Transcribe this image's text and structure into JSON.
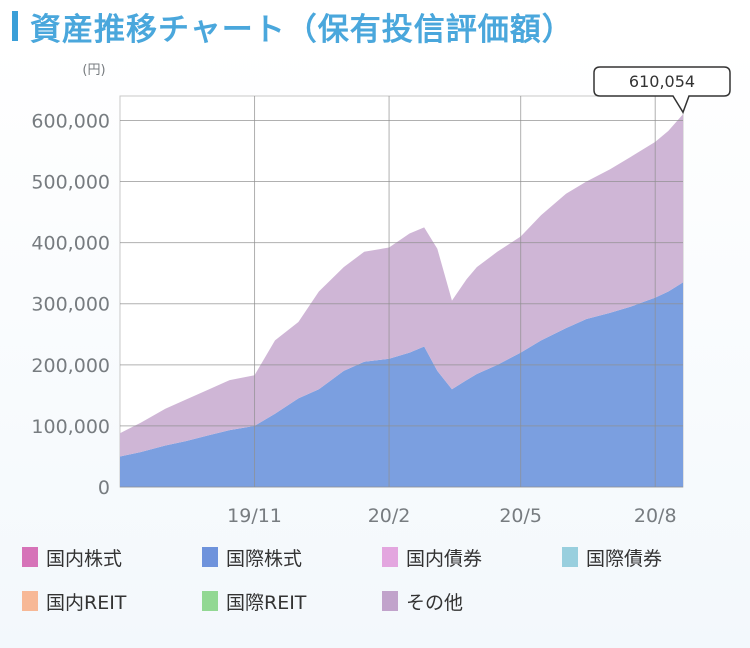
{
  "header": {
    "title": "資産推移チャート（保有投信評価額）"
  },
  "chart_data": {
    "type": "area",
    "stacked": true,
    "unit_label": "(円)",
    "ylim": [
      0,
      640000
    ],
    "yticks": [
      0,
      100000,
      200000,
      300000,
      400000,
      500000,
      600000
    ],
    "ytick_labels": [
      "0",
      "100,000",
      "200,000",
      "300,000",
      "400,000",
      "500,000",
      "600,000"
    ],
    "xlim": [
      "2019-08-01",
      "2020-08-20"
    ],
    "xticks": [
      "2019-11-01",
      "2020-02-01",
      "2020-05-01",
      "2020-08-01"
    ],
    "xtick_labels": [
      "19/11",
      "20/2",
      "20/5",
      "20/8"
    ],
    "grid": true,
    "callout": {
      "label": "610,054",
      "x": "2020-08-20",
      "value": 610054
    },
    "x": [
      "2019-08-01",
      "2019-08-15",
      "2019-09-01",
      "2019-09-15",
      "2019-10-01",
      "2019-10-15",
      "2019-11-01",
      "2019-11-15",
      "2019-12-01",
      "2019-12-15",
      "2020-01-01",
      "2020-01-15",
      "2020-02-01",
      "2020-02-15",
      "2020-02-25",
      "2020-03-05",
      "2020-03-15",
      "2020-03-25",
      "2020-04-01",
      "2020-04-15",
      "2020-05-01",
      "2020-05-15",
      "2020-06-01",
      "2020-06-15",
      "2020-07-01",
      "2020-07-15",
      "2020-08-01",
      "2020-08-10",
      "2020-08-20"
    ],
    "series": [
      {
        "name": "国際株式",
        "color": "#7b9fe0",
        "values": [
          50000,
          57000,
          68000,
          75000,
          85000,
          93000,
          100000,
          120000,
          145000,
          160000,
          190000,
          205000,
          210000,
          220000,
          230000,
          190000,
          160000,
          175000,
          185000,
          200000,
          220000,
          240000,
          260000,
          275000,
          285000,
          295000,
          310000,
          320000,
          335000
        ]
      },
      {
        "name": "その他",
        "color": "#cfb6d6",
        "values": [
          38000,
          48000,
          60000,
          68000,
          75000,
          82000,
          83000,
          120000,
          125000,
          160000,
          170000,
          180000,
          182000,
          195000,
          195000,
          200000,
          145000,
          165000,
          175000,
          185000,
          190000,
          205000,
          220000,
          225000,
          235000,
          245000,
          255000,
          263000,
          275054
        ]
      }
    ]
  },
  "legend": [
    {
      "label": "国内株式",
      "color": "#d673b8"
    },
    {
      "label": "国際株式",
      "color": "#6e93dc"
    },
    {
      "label": "国内債券",
      "color": "#e3a6df"
    },
    {
      "label": "国際債券",
      "color": "#98cfde"
    },
    {
      "label": "国内REIT",
      "color": "#f7b896"
    },
    {
      "label": "国際REIT",
      "color": "#92d893"
    },
    {
      "label": "その他",
      "color": "#c1a3cb"
    }
  ]
}
